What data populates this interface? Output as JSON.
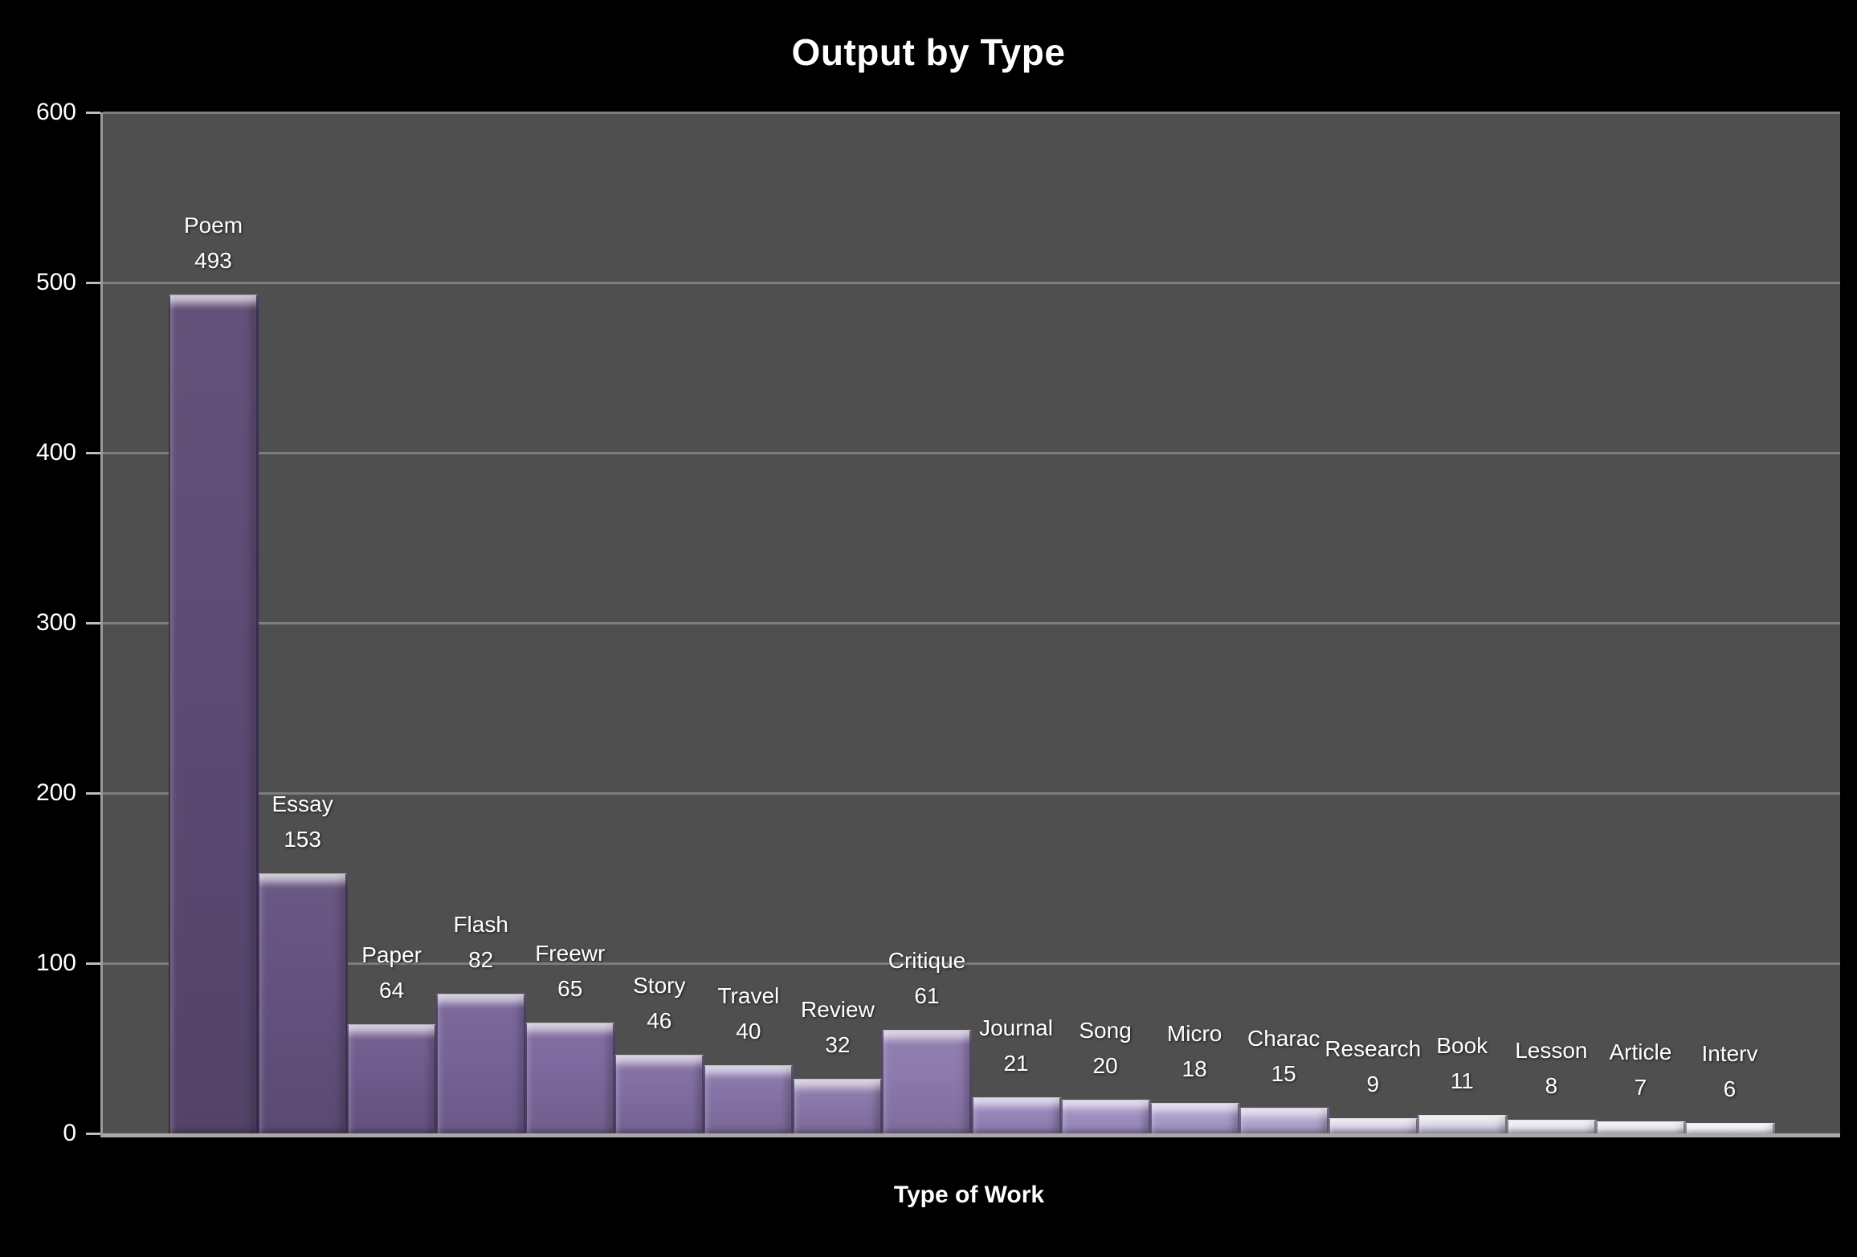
{
  "chart_data": {
    "type": "bar",
    "title": "Output by Type",
    "xlabel": "Type of Work",
    "ylabel": "",
    "ylim": [
      0,
      600
    ],
    "yticks": [
      0,
      100,
      200,
      300,
      400,
      500,
      600
    ],
    "grid": true,
    "legend": false,
    "categories": [
      "Poem",
      "Essay",
      "Paper",
      "Flash",
      "Freewr",
      "Story",
      "Travel",
      "Review",
      "Critique",
      "Journal",
      "Song",
      "Micro",
      "Charac",
      "Research",
      "Book",
      "Lesson",
      "Article",
      "Interv"
    ],
    "values": [
      493,
      153,
      64,
      82,
      65,
      46,
      40,
      32,
      61,
      21,
      20,
      18,
      15,
      9,
      11,
      8,
      7,
      6
    ],
    "bar_colors": [
      "#5c4a73",
      "#64517f",
      "#6e5a8c",
      "#766397",
      "#7c689d",
      "#816da2",
      "#8572a6",
      "#8976a9",
      "#8c79ad",
      "#9785ba",
      "#a090c2",
      "#aa9bc9",
      "#b4a7d0",
      "#ccc4db",
      "#d4cee2",
      "#dcd7e8",
      "#e3e0ed",
      "#ebe9f2"
    ],
    "colors": {
      "page_background": "#000000",
      "plot_background": "#4f4f4f",
      "gridline": "#7e7e7e",
      "axis_line": "#9a9a9a",
      "text": "#ffffff"
    }
  }
}
